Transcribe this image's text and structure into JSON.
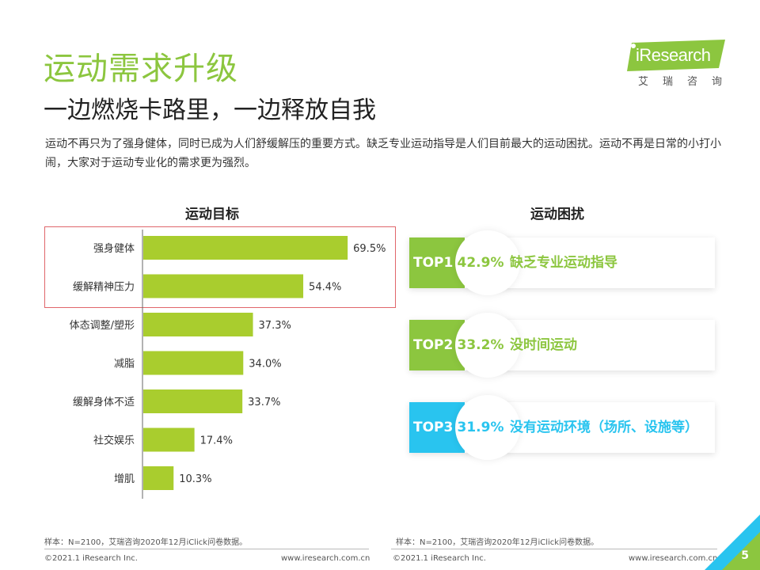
{
  "header": {
    "title": "运动需求升级",
    "subtitle": "一边燃烧卡路里，一边释放自我",
    "description": "运动不再只为了强身健体，同时已成为人们舒缓解压的重要方式。缺乏专业运动指导是人们目前最大的运动困扰。运动不再是日常的小打小闹，大家对于运动专业化的需求更为强烈。"
  },
  "logo": {
    "name": "iResearch",
    "cn": "艾瑞咨询"
  },
  "colors": {
    "green": "#8cc63f",
    "bar": "#a9cd2e",
    "cyan": "#29c4ef",
    "highlight": "#e0666b"
  },
  "chart_data": [
    {
      "type": "bar",
      "orientation": "horizontal",
      "title": "运动目标",
      "categories": [
        "强身健体",
        "缓解精神压力",
        "体态调整/塑形",
        "减脂",
        "缓解身体不适",
        "社交娱乐",
        "增肌"
      ],
      "values": [
        69.5,
        54.4,
        37.3,
        34.0,
        33.7,
        17.4,
        10.3
      ],
      "value_labels": [
        "69.5%",
        "54.4%",
        "37.3%",
        "34.0%",
        "33.7%",
        "17.4%",
        "10.3%"
      ],
      "highlighted_categories": [
        "强身健体",
        "缓解精神压力"
      ]
    },
    {
      "type": "table",
      "title": "运动困扰",
      "rows": [
        {
          "rank": "TOP1",
          "value": 42.9,
          "label": "42.9%",
          "text": "缺乏专业运动指导",
          "color": "#8cc63f"
        },
        {
          "rank": "TOP2",
          "value": 33.2,
          "label": "33.2%",
          "text": "没时间运动",
          "color": "#8cc63f"
        },
        {
          "rank": "TOP3",
          "value": 31.9,
          "label": "31.9%",
          "text": "没有运动环境（场所、设施等）",
          "color": "#29c4ef"
        }
      ]
    }
  ],
  "footer": {
    "note_left": "样本：N=2100，艾瑞咨询2020年12月iClick问卷数据。",
    "note_right": "样本：N=2100，艾瑞咨询2020年12月iClick问卷数据。",
    "copyright_left": "©2021.1 iResearch Inc.",
    "url_left": "www.iresearch.com.cn",
    "copyright_right": "©2021.1 iResearch Inc.",
    "url_right": "www.iresearch.com.cn",
    "page": "5"
  }
}
